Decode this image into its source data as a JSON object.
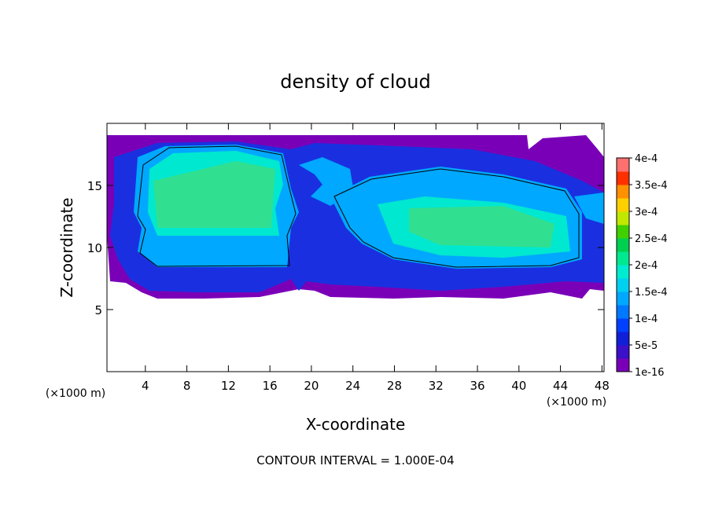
{
  "chart_data": {
    "type": "contour",
    "title": "density of cloud",
    "xlabel": "X-coordinate",
    "ylabel": "Z-coordinate",
    "xunit": "(×1000 m)",
    "yunit": "(×1000 m)",
    "footer": "CONTOUR INTERVAL = 1.000E-04",
    "xlim": [
      0.3,
      48.2
    ],
    "xticks": [
      4,
      8,
      12,
      16,
      20,
      24,
      28,
      32,
      36,
      40,
      44,
      48
    ],
    "ylim": [
      0,
      20
    ],
    "yticks": [
      5,
      10,
      15
    ],
    "colorbar": {
      "lim": [
        1e-16,
        0.0004
      ],
      "ticks": [
        {
          "value": 1e-16,
          "label": "1e-16"
        },
        {
          "value": 5e-05,
          "label": "5e-5"
        },
        {
          "value": 0.0001,
          "label": "1e-4"
        },
        {
          "value": 0.00015,
          "label": "1.5e-4"
        },
        {
          "value": 0.0002,
          "label": "2e-4"
        },
        {
          "value": 0.00025,
          "label": "2.5e-4"
        },
        {
          "value": 0.0003,
          "label": "3e-4"
        },
        {
          "value": 0.00035,
          "label": "3.5e-4"
        },
        {
          "value": 0.0004,
          "label": "4e-4"
        }
      ],
      "colors": [
        "#7a00b8",
        "#3a10c8",
        "#1020d8",
        "#0040ff",
        "#0078ff",
        "#00a8ff",
        "#00d0f0",
        "#00ecd0",
        "#00e890",
        "#00d050",
        "#40d000",
        "#c0e800",
        "#ffd000",
        "#ff9000",
        "#ff3000",
        "#ff7070"
      ]
    }
  }
}
